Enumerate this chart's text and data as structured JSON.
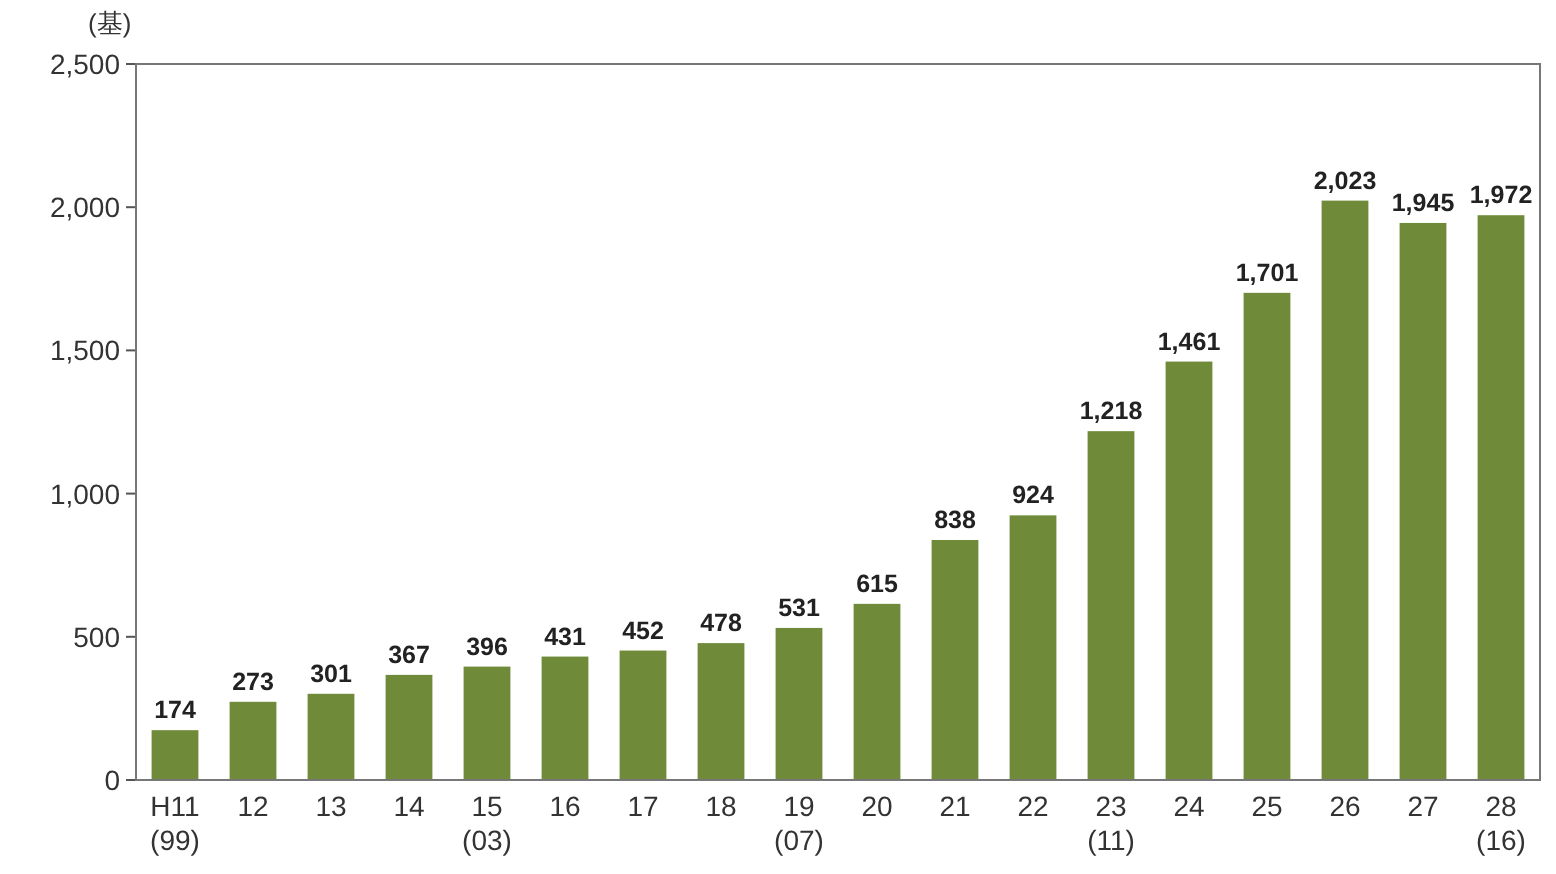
{
  "chart_data": {
    "type": "bar",
    "ylabel": "(基)",
    "categories": [
      "H11\n(99)",
      "12",
      "13",
      "14",
      "15\n(03)",
      "16",
      "17",
      "18",
      "19\n(07)",
      "20",
      "21",
      "22",
      "23\n(11)",
      "24",
      "25",
      "26",
      "27",
      "28\n(16)"
    ],
    "values": [
      174,
      273,
      301,
      367,
      396,
      431,
      452,
      478,
      531,
      615,
      838,
      924,
      1218,
      1461,
      1701,
      2023,
      1945,
      1972
    ],
    "color": "#6f8b3a",
    "ylim": [
      0,
      2500
    ],
    "yticks": [
      {
        "value": 0,
        "label": "0"
      },
      {
        "value": 500,
        "label": "500"
      },
      {
        "value": 1000,
        "label": "1,000"
      },
      {
        "value": 1500,
        "label": "1,500"
      },
      {
        "value": 2000,
        "label": "2,000"
      },
      {
        "value": 2500,
        "label": "2,500"
      }
    ],
    "value_labels": [
      "174",
      "273",
      "301",
      "367",
      "396",
      "431",
      "452",
      "478",
      "531",
      "615",
      "838",
      "924",
      "1,218",
      "1,461",
      "1,701",
      "2,023",
      "1,945",
      "1,972"
    ],
    "grid": false
  }
}
